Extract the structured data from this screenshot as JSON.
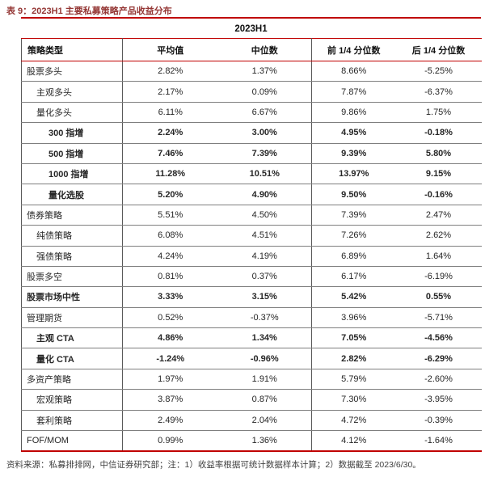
{
  "title": "表 9：2023H1 主要私募策略产品收益分布",
  "table": {
    "period_header": "2023H1",
    "columns": [
      "策略类型",
      "平均值",
      "中位数",
      "前 1/4 分位数",
      "后 1/4 分位数"
    ],
    "rows": [
      {
        "strategy": "股票多头",
        "indent": 0,
        "bold": false,
        "values": [
          "2.82%",
          "1.37%",
          "8.66%",
          "-5.25%"
        ]
      },
      {
        "strategy": "主观多头",
        "indent": 1,
        "bold": false,
        "values": [
          "2.17%",
          "0.09%",
          "7.87%",
          "-6.37%"
        ]
      },
      {
        "strategy": "量化多头",
        "indent": 1,
        "bold": false,
        "values": [
          "6.11%",
          "6.67%",
          "9.86%",
          "1.75%"
        ]
      },
      {
        "strategy": "300 指增",
        "indent": 2,
        "bold": true,
        "values": [
          "2.24%",
          "3.00%",
          "4.95%",
          "-0.18%"
        ]
      },
      {
        "strategy": "500 指增",
        "indent": 2,
        "bold": true,
        "values": [
          "7.46%",
          "7.39%",
          "9.39%",
          "5.80%"
        ]
      },
      {
        "strategy": "1000 指增",
        "indent": 2,
        "bold": true,
        "values": [
          "11.28%",
          "10.51%",
          "13.97%",
          "9.15%"
        ]
      },
      {
        "strategy": "量化选股",
        "indent": 2,
        "bold": true,
        "values": [
          "5.20%",
          "4.90%",
          "9.50%",
          "-0.16%"
        ]
      },
      {
        "strategy": "债券策略",
        "indent": 0,
        "bold": false,
        "values": [
          "5.51%",
          "4.50%",
          "7.39%",
          "2.47%"
        ]
      },
      {
        "strategy": "纯债策略",
        "indent": 1,
        "bold": false,
        "values": [
          "6.08%",
          "4.51%",
          "7.26%",
          "2.62%"
        ]
      },
      {
        "strategy": "强债策略",
        "indent": 1,
        "bold": false,
        "values": [
          "4.24%",
          "4.19%",
          "6.89%",
          "1.64%"
        ]
      },
      {
        "strategy": "股票多空",
        "indent": 0,
        "bold": false,
        "values": [
          "0.81%",
          "0.37%",
          "6.17%",
          "-6.19%"
        ]
      },
      {
        "strategy": "股票市场中性",
        "indent": 0,
        "bold": true,
        "values": [
          "3.33%",
          "3.15%",
          "5.42%",
          "0.55%"
        ]
      },
      {
        "strategy": "管理期货",
        "indent": 0,
        "bold": false,
        "values": [
          "0.52%",
          "-0.37%",
          "3.96%",
          "-5.71%"
        ]
      },
      {
        "strategy": "主观 CTA",
        "indent": 1,
        "bold": true,
        "values": [
          "4.86%",
          "1.34%",
          "7.05%",
          "-4.56%"
        ]
      },
      {
        "strategy": "量化 CTA",
        "indent": 1,
        "bold": true,
        "values": [
          "-1.24%",
          "-0.96%",
          "2.82%",
          "-6.29%"
        ]
      },
      {
        "strategy": "多资产策略",
        "indent": 0,
        "bold": false,
        "values": [
          "1.97%",
          "1.91%",
          "5.79%",
          "-2.60%"
        ]
      },
      {
        "strategy": "宏观策略",
        "indent": 1,
        "bold": false,
        "values": [
          "3.87%",
          "0.87%",
          "7.30%",
          "-3.95%"
        ]
      },
      {
        "strategy": "套利策略",
        "indent": 1,
        "bold": false,
        "values": [
          "2.49%",
          "2.04%",
          "4.72%",
          "-0.39%"
        ]
      },
      {
        "strategy": "FOF/MOM",
        "indent": 0,
        "bold": false,
        "values": [
          "0.99%",
          "1.36%",
          "4.12%",
          "-1.64%"
        ]
      }
    ]
  },
  "footer": "资料来源：私募排排网，中信证券研究部；注：1）收益率根据可统计数据样本计算；2）数据截至 2023/6/30。",
  "colors": {
    "accent_red": "#C00000",
    "title_red": "#943634",
    "row_line_gray": "#7f7f7f",
    "divider_gray": "#595959",
    "text_black": "#262626",
    "footer_gray": "#404040"
  }
}
